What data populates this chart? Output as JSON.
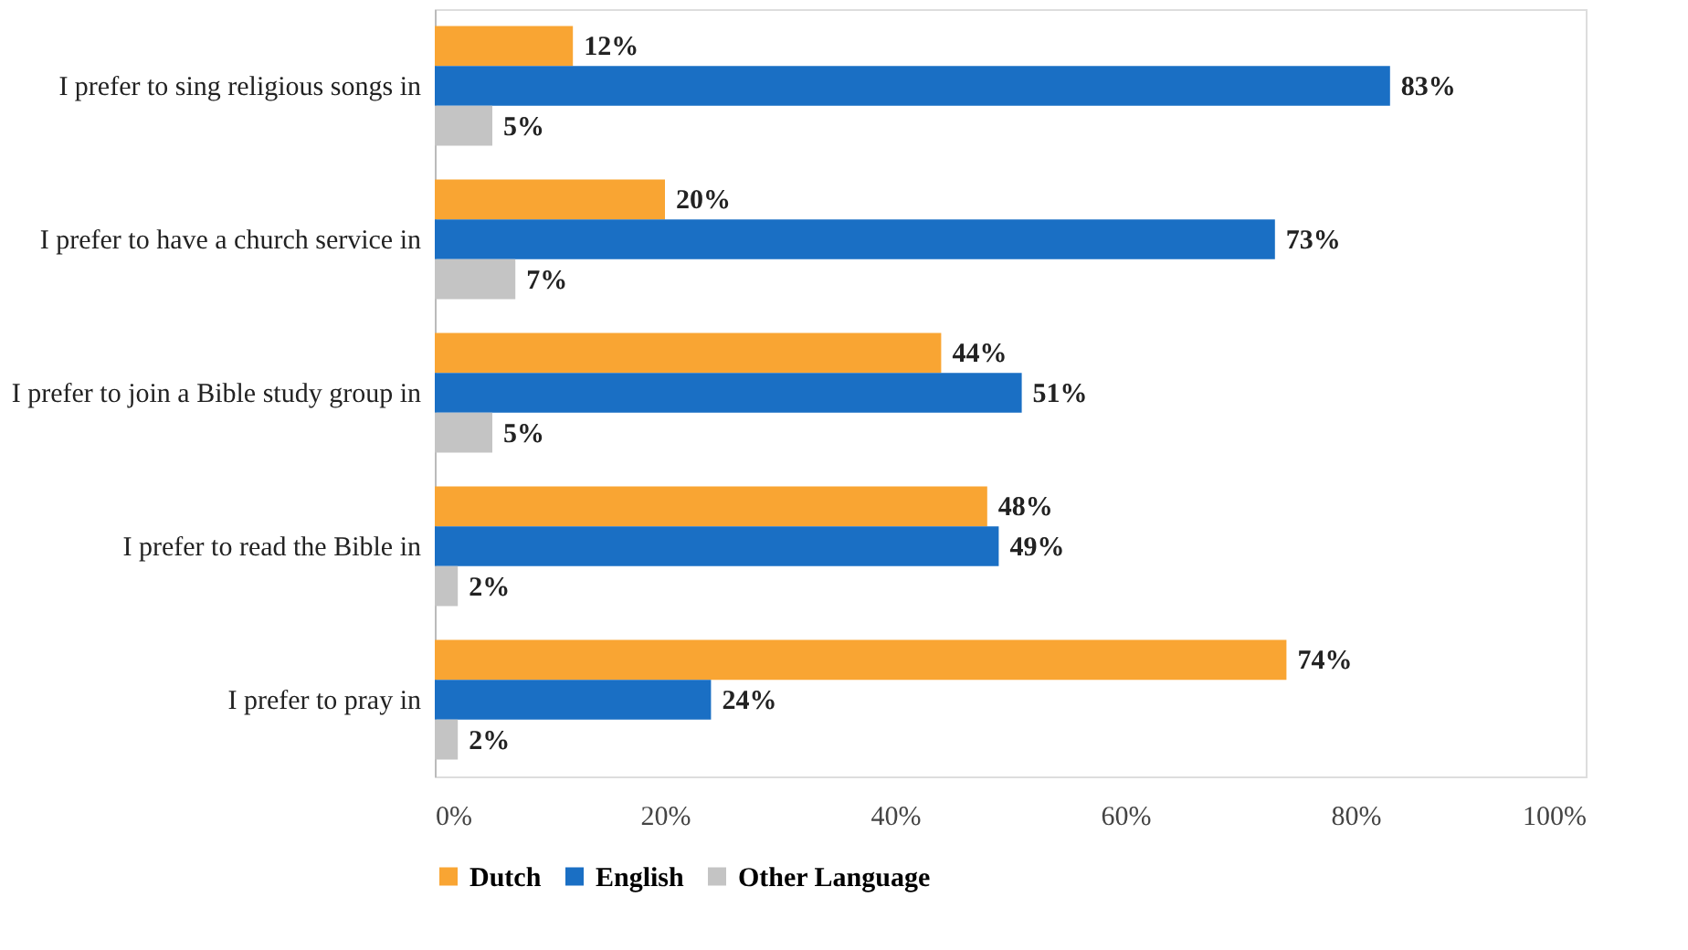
{
  "chart_data": {
    "type": "bar",
    "orientation": "horizontal",
    "legend": "bottom",
    "categories": [
      "I prefer to sing religious songs in",
      "I prefer to have a church service in",
      "I prefer to join a Bible study group in",
      "I prefer to read the Bible in",
      "I prefer to pray in"
    ],
    "series": [
      {
        "name": "Dutch",
        "color": "#f9a533",
        "values": [
          12,
          20,
          44,
          48,
          74
        ],
        "value_labels": [
          "12%",
          "20%",
          "44%",
          "48%",
          "74%"
        ]
      },
      {
        "name": "English",
        "color": "#1a6fc4",
        "values": [
          83,
          73,
          51,
          49,
          24
        ],
        "value_labels": [
          "83%",
          "73%",
          "51%",
          "49%",
          "24%"
        ]
      },
      {
        "name": "Other Language",
        "color": "#c4c4c4",
        "values": [
          5,
          7,
          5,
          2,
          2
        ],
        "value_labels": [
          "5%",
          "7%",
          "5%",
          "2%",
          "2%"
        ]
      }
    ],
    "xlim": [
      0,
      100
    ],
    "xticks": [
      {
        "value": 0,
        "label": "0%"
      },
      {
        "value": 20,
        "label": "20%"
      },
      {
        "value": 40,
        "label": "40%"
      },
      {
        "value": 60,
        "label": "60%"
      },
      {
        "value": 80,
        "label": "80%"
      },
      {
        "value": 100,
        "label": "100%"
      }
    ]
  }
}
